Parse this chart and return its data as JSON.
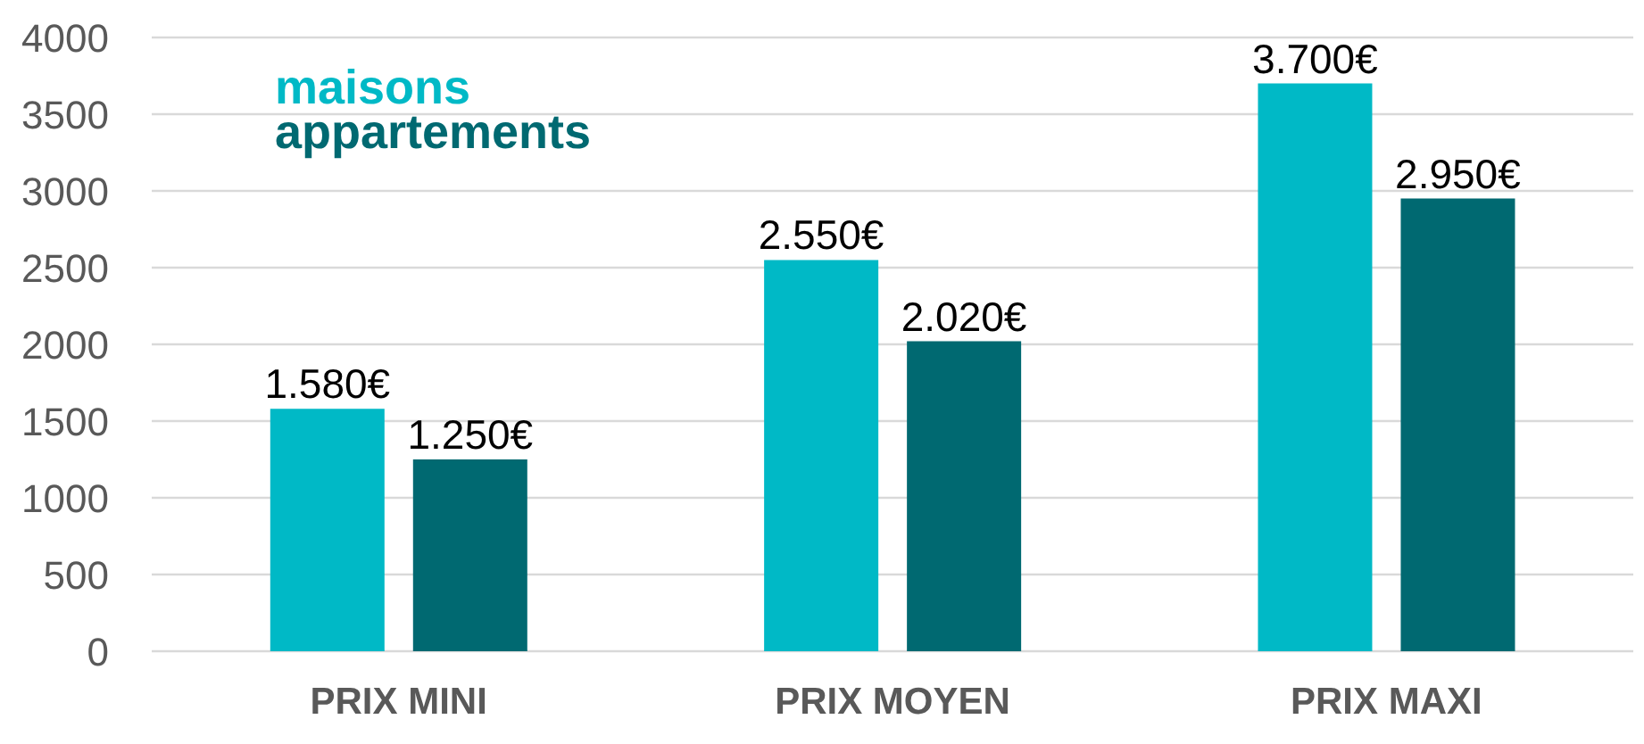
{
  "chart_data": {
    "type": "bar",
    "categories": [
      "PRIX MINI",
      "PRIX MOYEN",
      "PRIX MAXI"
    ],
    "series": [
      {
        "name": "maisons",
        "color": "#00b9c6",
        "values": [
          1580,
          2550,
          3700
        ],
        "value_labels": [
          "1.580€",
          "2.550€",
          "3.700€"
        ]
      },
      {
        "name": "appartements",
        "color": "#006971",
        "values": [
          1250,
          2020,
          2950
        ],
        "value_labels": [
          "1.250€",
          "2.020€",
          "2.950€"
        ]
      }
    ],
    "ylim": [
      0,
      4000
    ],
    "yticks": [
      0,
      500,
      1000,
      1500,
      2000,
      2500,
      3000,
      3500,
      4000
    ],
    "grid": "y",
    "legend": "top left"
  }
}
